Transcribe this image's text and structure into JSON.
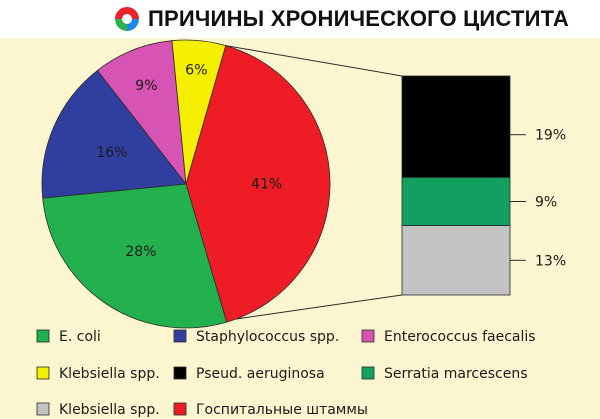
{
  "header": {
    "title": "ПРИЧИНЫ ХРОНИЧЕСКОГО ЦИСТИТА"
  },
  "chart_data": {
    "type": "pie",
    "title": "ПРИЧИНЫ ХРОНИЧЕСКОГО ЦИСТИТА",
    "slices": [
      {
        "name": "Госпитальные штаммы",
        "value": 41,
        "label": "41%",
        "color": "#ee1c24"
      },
      {
        "name": "E. coli",
        "value": 28,
        "label": "28%",
        "color": "#22b14c"
      },
      {
        "name": "Staphylococcus spp.",
        "value": 16,
        "label": "16%",
        "color": "#303f9f"
      },
      {
        "name": "Enterococcus faecalis",
        "value": 9,
        "label": "9%",
        "color": "#d554b4"
      },
      {
        "name": "Klebsiella spp.",
        "value": 6,
        "label": "6%",
        "color": "#f4ef00"
      }
    ],
    "breakdown": {
      "parent": "Госпитальные штаммы",
      "segments": [
        {
          "name": "Pseud. aeruginosa",
          "value": 19,
          "label": "19%",
          "color": "#000000"
        },
        {
          "name": "Serratia marcescens",
          "value": 9,
          "label": "9%",
          "color": "#12a060"
        },
        {
          "name": "Klebsiella spp.",
          "value": 13,
          "label": "13%",
          "color": "#c3c3c3"
        }
      ]
    },
    "legend": [
      {
        "label": "E. coli",
        "color": "#22b14c"
      },
      {
        "label": "Staphylococcus spp.",
        "color": "#303f9f"
      },
      {
        "label": "Enterococcus faecalis",
        "color": "#d554b4"
      },
      {
        "label": "Klebsiella spp.",
        "color": "#f4ef00"
      },
      {
        "label": "Pseud. aeruginosa",
        "color": "#000000"
      },
      {
        "label": "Serratia marcescens",
        "color": "#12a060"
      },
      {
        "label": "Klebsiella spp.",
        "color": "#c3c3c3"
      },
      {
        "label": "Госпитальные штаммы",
        "color": "#ee1c24"
      }
    ],
    "legend_placement": "bottom"
  }
}
